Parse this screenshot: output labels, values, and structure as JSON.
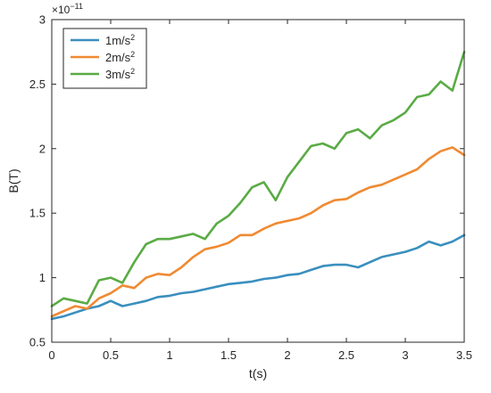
{
  "chart_data": {
    "type": "line",
    "xlabel": "t(s)",
    "ylabel": "B(T)",
    "xlim": [
      0,
      3.5
    ],
    "ylim": [
      0.5,
      3
    ],
    "xticks": [
      0,
      0.5,
      1,
      1.5,
      2,
      2.5,
      3,
      3.5
    ],
    "yticks": [
      0.5,
      1,
      1.5,
      2,
      2.5,
      3
    ],
    "xtick_labels": [
      "0",
      "0.5",
      "1",
      "1.5",
      "2",
      "2.5",
      "3",
      "3.5"
    ],
    "ytick_labels": [
      "0.5",
      "1",
      "1.5",
      "2",
      "2.5",
      "3"
    ],
    "y_multiplier_base": "×10",
    "y_multiplier_exp": "−11",
    "grid": false,
    "legend_position": "top-left",
    "series": [
      {
        "name": "1m/s",
        "name_sup": "2",
        "color": "#3a8fbf",
        "x": [
          0,
          0.1,
          0.2,
          0.3,
          0.4,
          0.5,
          0.6,
          0.7,
          0.8,
          0.9,
          1.0,
          1.1,
          1.2,
          1.3,
          1.4,
          1.5,
          1.6,
          1.7,
          1.8,
          1.9,
          2.0,
          2.1,
          2.2,
          2.3,
          2.4,
          2.5,
          2.6,
          2.7,
          2.8,
          2.9,
          3.0,
          3.1,
          3.2,
          3.3,
          3.4,
          3.5
        ],
        "y": [
          0.68,
          0.7,
          0.73,
          0.76,
          0.78,
          0.82,
          0.78,
          0.8,
          0.82,
          0.85,
          0.86,
          0.88,
          0.89,
          0.91,
          0.93,
          0.95,
          0.96,
          0.97,
          0.99,
          1.0,
          1.02,
          1.03,
          1.06,
          1.09,
          1.1,
          1.1,
          1.08,
          1.12,
          1.16,
          1.18,
          1.2,
          1.23,
          1.28,
          1.25,
          1.28,
          1.33
        ]
      },
      {
        "name": "2m/s",
        "name_sup": "2",
        "color": "#f08a32",
        "x": [
          0,
          0.1,
          0.2,
          0.3,
          0.4,
          0.5,
          0.6,
          0.7,
          0.8,
          0.9,
          1.0,
          1.1,
          1.2,
          1.3,
          1.4,
          1.5,
          1.6,
          1.7,
          1.8,
          1.9,
          2.0,
          2.1,
          2.2,
          2.3,
          2.4,
          2.5,
          2.6,
          2.7,
          2.8,
          2.9,
          3.0,
          3.1,
          3.2,
          3.3,
          3.4,
          3.5
        ],
        "y": [
          0.7,
          0.74,
          0.78,
          0.76,
          0.84,
          0.88,
          0.94,
          0.92,
          1.0,
          1.03,
          1.02,
          1.08,
          1.16,
          1.22,
          1.24,
          1.27,
          1.33,
          1.33,
          1.38,
          1.42,
          1.44,
          1.46,
          1.5,
          1.56,
          1.6,
          1.61,
          1.66,
          1.7,
          1.72,
          1.76,
          1.8,
          1.84,
          1.92,
          1.98,
          2.01,
          1.95
        ]
      },
      {
        "name": "3m/s",
        "name_sup": "2",
        "color": "#5aab45",
        "x": [
          0,
          0.1,
          0.2,
          0.3,
          0.4,
          0.5,
          0.6,
          0.7,
          0.8,
          0.9,
          1.0,
          1.1,
          1.2,
          1.3,
          1.4,
          1.5,
          1.6,
          1.7,
          1.8,
          1.9,
          2.0,
          2.1,
          2.2,
          2.3,
          2.4,
          2.5,
          2.6,
          2.7,
          2.8,
          2.9,
          3.0,
          3.1,
          3.2,
          3.3,
          3.4,
          3.5
        ],
        "y": [
          0.78,
          0.84,
          0.82,
          0.8,
          0.98,
          1.0,
          0.96,
          1.12,
          1.26,
          1.3,
          1.3,
          1.32,
          1.34,
          1.3,
          1.42,
          1.48,
          1.58,
          1.7,
          1.74,
          1.6,
          1.78,
          1.9,
          2.02,
          2.04,
          2.0,
          2.12,
          2.15,
          2.08,
          2.18,
          2.22,
          2.28,
          2.4,
          2.42,
          2.52,
          2.45,
          2.75
        ]
      }
    ]
  }
}
